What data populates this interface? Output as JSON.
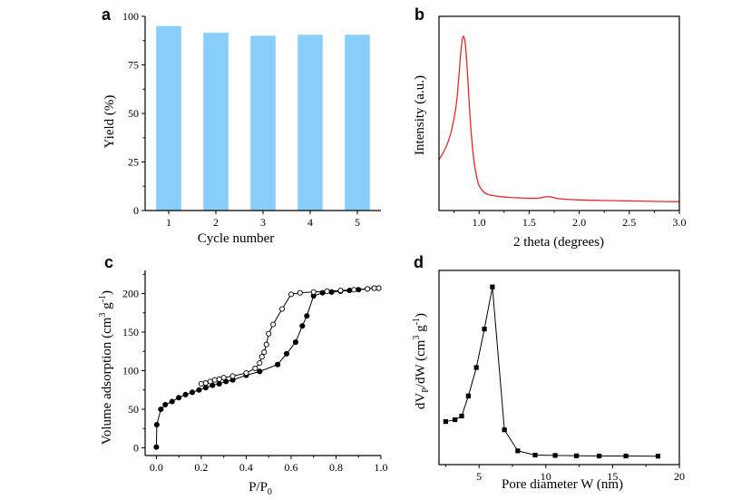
{
  "chart_data": [
    {
      "panel": "a",
      "type": "bar",
      "categories": [
        "1",
        "2",
        "3",
        "4",
        "5"
      ],
      "values": [
        95,
        91.5,
        90,
        90.5,
        90.5
      ],
      "xlabel": "Cycle number",
      "ylabel": "Yield (%)",
      "ylim": [
        0,
        100
      ],
      "yticks": [
        0,
        25,
        50,
        75,
        100
      ],
      "bar_color": "#87cefa"
    },
    {
      "panel": "b",
      "type": "line",
      "xlabel": "2 theta (degrees)",
      "ylabel": "Intensity (a.u.)",
      "xlim": [
        0.6,
        3.0
      ],
      "ylim": [
        0,
        1
      ],
      "xticks": [
        1.0,
        1.5,
        2.0,
        2.5,
        3.0
      ],
      "yticks": [],
      "line_color": "#e8262b",
      "series": [
        {
          "x": [
            0.6,
            0.65,
            0.7,
            0.75,
            0.78,
            0.8,
            0.82,
            0.84,
            0.86,
            0.88,
            0.9,
            0.92,
            0.95,
            0.98,
            1.0,
            1.05,
            1.1,
            1.2,
            1.3,
            1.4,
            1.5,
            1.6,
            1.65,
            1.7,
            1.75,
            1.8,
            1.9,
            2.0,
            2.2,
            2.4,
            2.6,
            2.8,
            3.0
          ],
          "y": [
            0.28,
            0.33,
            0.4,
            0.52,
            0.64,
            0.78,
            0.92,
            1.0,
            0.97,
            0.83,
            0.63,
            0.45,
            0.27,
            0.17,
            0.13,
            0.09,
            0.075,
            0.065,
            0.06,
            0.057,
            0.055,
            0.056,
            0.062,
            0.064,
            0.058,
            0.052,
            0.048,
            0.045,
            0.042,
            0.04,
            0.038,
            0.036,
            0.035
          ]
        }
      ]
    },
    {
      "panel": "c",
      "type": "line",
      "xlabel": "P/P",
      "xlabel_subscript": "0",
      "ylabel": "Volume adsorption (cm",
      "ylabel_sup1": "3",
      "ylabel_mid": " g",
      "ylabel_sup2": "-1",
      "ylabel_end": ")",
      "xlim": [
        -0.05,
        1.0
      ],
      "ylim": [
        -10,
        230
      ],
      "xticks": [
        0.0,
        0.2,
        0.4,
        0.6,
        0.8,
        1.0
      ],
      "yticks": [
        0,
        50,
        100,
        150,
        200
      ],
      "series": [
        {
          "marker": "filled-circle",
          "x": [
            0.0,
            0.002,
            0.02,
            0.04,
            0.07,
            0.1,
            0.13,
            0.16,
            0.19,
            0.22,
            0.25,
            0.28,
            0.31,
            0.34,
            0.4,
            0.46,
            0.54,
            0.58,
            0.62,
            0.65,
            0.67,
            0.7,
            0.74,
            0.78,
            0.82,
            0.86,
            0.9,
            0.94,
            0.97,
            0.99
          ],
          "y": [
            1,
            30,
            50,
            56,
            60,
            65,
            69,
            72,
            75,
            78,
            81,
            83,
            86,
            88,
            94,
            99,
            108,
            122,
            137,
            158,
            171,
            197,
            201,
            202,
            203,
            204,
            205,
            206,
            207,
            207
          ]
        },
        {
          "marker": "open-circle",
          "x": [
            0.2,
            0.22,
            0.24,
            0.26,
            0.28,
            0.3,
            0.34,
            0.4,
            0.44,
            0.46,
            0.47,
            0.48,
            0.49,
            0.5,
            0.52,
            0.56,
            0.6,
            0.64,
            0.7,
            0.76,
            0.82,
            0.88,
            0.94,
            0.97,
            0.99
          ],
          "y": [
            83,
            84,
            86,
            88,
            89,
            91,
            93,
            97,
            103,
            110,
            118,
            124,
            134,
            148,
            160,
            180,
            199,
            201,
            202,
            203,
            204,
            205,
            206,
            207,
            207
          ]
        }
      ]
    },
    {
      "panel": "d",
      "type": "line",
      "xlabel": "Pore diameter W (nm)",
      "ylabel": "dV",
      "ylabel_sub": "P",
      "ylabel_mid": "/dW (cm",
      "ylabel_sup1": "3",
      "ylabel_mid2": " g",
      "ylabel_sup2": "-1",
      "ylabel_end": ")",
      "xlim": [
        2,
        20
      ],
      "ylim": [
        0,
        1
      ],
      "xticks": [
        5,
        10,
        15,
        20
      ],
      "yticks": [],
      "series": [
        {
          "marker": "filled-square",
          "x": [
            2.5,
            3.2,
            3.7,
            4.2,
            4.8,
            5.4,
            6.0,
            6.9,
            7.9,
            9.2,
            10.7,
            12.3,
            14.0,
            16.0,
            18.4
          ],
          "y": [
            0.195,
            0.205,
            0.225,
            0.335,
            0.49,
            0.7,
            0.93,
            0.15,
            0.035,
            0.012,
            0.01,
            0.008,
            0.007,
            0.007,
            0.006
          ]
        }
      ]
    }
  ]
}
